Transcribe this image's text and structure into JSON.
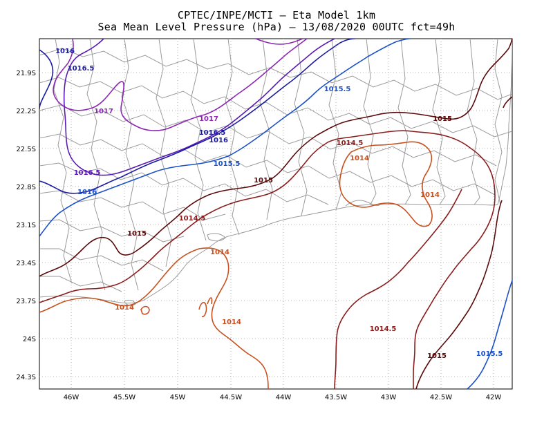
{
  "title": {
    "line1": "CPTEC/INPE/MCTI –  Eta Model 1km",
    "line2": "Sea Mean Level Pressure (hPa) – 13/08/2020 00UTC fct=49h"
  },
  "axes": {
    "lat_ticks": [
      "21.9S",
      "22.2S",
      "22.5S",
      "22.8S",
      "23.1S",
      "23.4S",
      "23.7S",
      "24S",
      "24.3S"
    ],
    "lon_ticks": [
      "46W",
      "45.5W",
      "45W",
      "44.5W",
      "44W",
      "43.5W",
      "43W",
      "42.5W",
      "42W"
    ]
  },
  "colors": {
    "c1014": "#c8501e",
    "c1014_5": "#8a1c1c",
    "c1015": "#5a0a0a",
    "c1015_5": "#1a50c8",
    "c1016": "#1a1aa0",
    "c1016_5": "#5a1ab4",
    "c1017": "#8c28b4",
    "grid": "#aaaaaa",
    "borders": "#9a9a9a"
  },
  "contour_labels": [
    {
      "id": "l1016a",
      "text": "1016"
    },
    {
      "id": "l1016_5a",
      "text": "1016.5"
    },
    {
      "id": "l1017a",
      "text": "1017"
    },
    {
      "id": "l1017b",
      "text": "1017"
    },
    {
      "id": "l1016_5b",
      "text": "1016.5"
    },
    {
      "id": "l1016b",
      "text": "1016"
    },
    {
      "id": "l1015_5a",
      "text": "1015.5"
    },
    {
      "id": "l1015_5b",
      "text": "1015.5"
    },
    {
      "id": "l1016_5c",
      "text": "1016.5"
    },
    {
      "id": "l1016c",
      "text": "1016"
    },
    {
      "id": "l1015a",
      "text": "1015"
    },
    {
      "id": "l1015b",
      "text": "1015"
    },
    {
      "id": "l1015c",
      "text": "1015"
    },
    {
      "id": "l1014_5a",
      "text": "1014.5"
    },
    {
      "id": "l1014_5b",
      "text": "1014.5"
    },
    {
      "id": "l1014a",
      "text": "1014"
    },
    {
      "id": "l1014b",
      "text": "1014"
    },
    {
      "id": "l1014c",
      "text": "1014"
    },
    {
      "id": "l1014d",
      "text": "1014"
    },
    {
      "id": "l1014e",
      "text": "1014"
    },
    {
      "id": "l1014_5c",
      "text": "1014.5"
    },
    {
      "id": "l1015d",
      "text": "1015"
    },
    {
      "id": "l1015_5c",
      "text": "1015.5"
    }
  ]
}
